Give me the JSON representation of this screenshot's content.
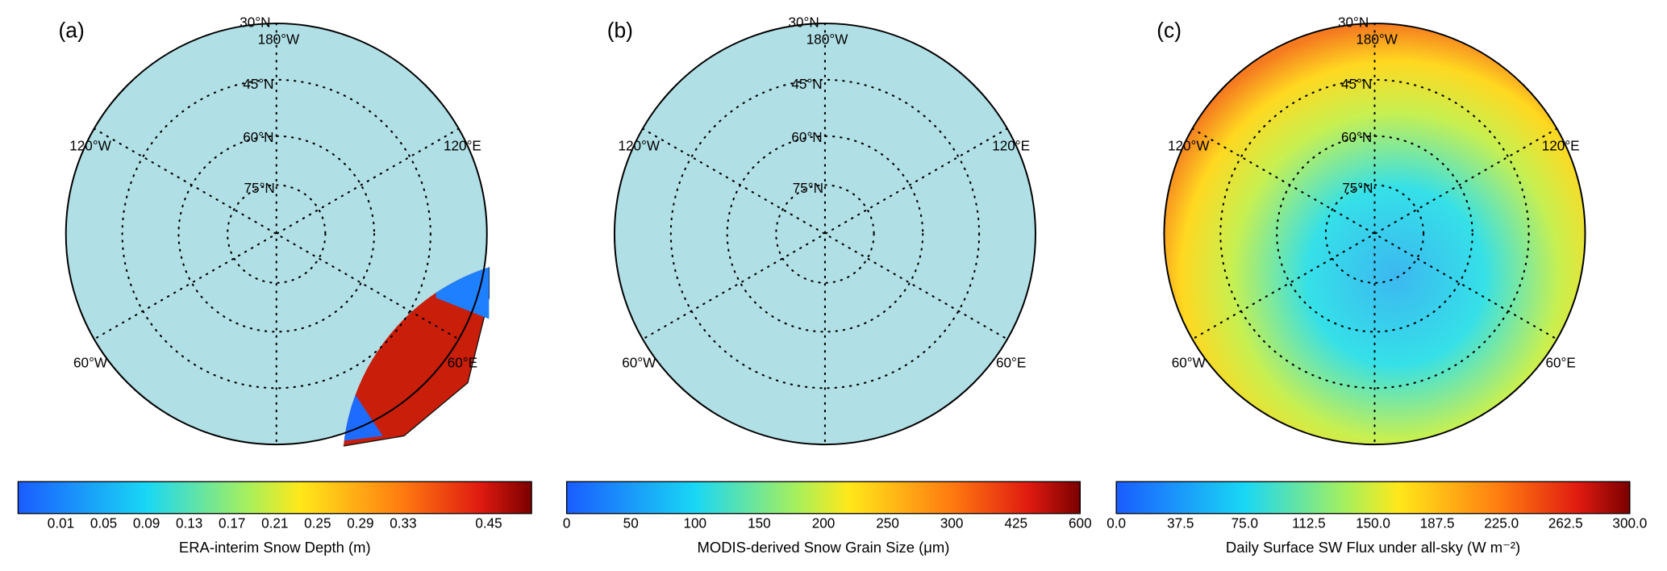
{
  "panels": [
    {
      "label": "(a)",
      "grid_labels": [
        "30°N",
        "180°W",
        "45°N",
        "60°N",
        "75°N",
        "120°W",
        "120°E",
        "60°W",
        "60°E"
      ],
      "colorbar": {
        "title": "ERA-interim Snow Depth (m)",
        "ticks": [
          "0.01",
          "0.05",
          "0.09",
          "0.13",
          "0.17",
          "0.21",
          "0.25",
          "0.29",
          "0.33",
          "0.45"
        ]
      }
    },
    {
      "label": "(b)",
      "grid_labels": [
        "30°N",
        "180°W",
        "45°N",
        "60°N",
        "75°N",
        "120°W",
        "120°E",
        "60°W",
        "60°E"
      ],
      "colorbar": {
        "title": "MODIS-derived Snow Grain Size (μm)",
        "ticks": [
          "0",
          "50",
          "100",
          "150",
          "200",
          "250",
          "300",
          "425",
          "600"
        ]
      }
    },
    {
      "label": "(c)",
      "grid_labels": [
        "30°N",
        "180°W",
        "45°N",
        "60°N",
        "75°N",
        "120°W",
        "120°E",
        "60°W",
        "60°E"
      ],
      "colorbar": {
        "title": "Daily Surface SW Flux under all-sky (W m⁻²)",
        "ticks": [
          "0.0",
          "37.5",
          "75.0",
          "112.5",
          "150.0",
          "187.5",
          "225.0",
          "262.5",
          "300.0"
        ]
      }
    }
  ]
}
